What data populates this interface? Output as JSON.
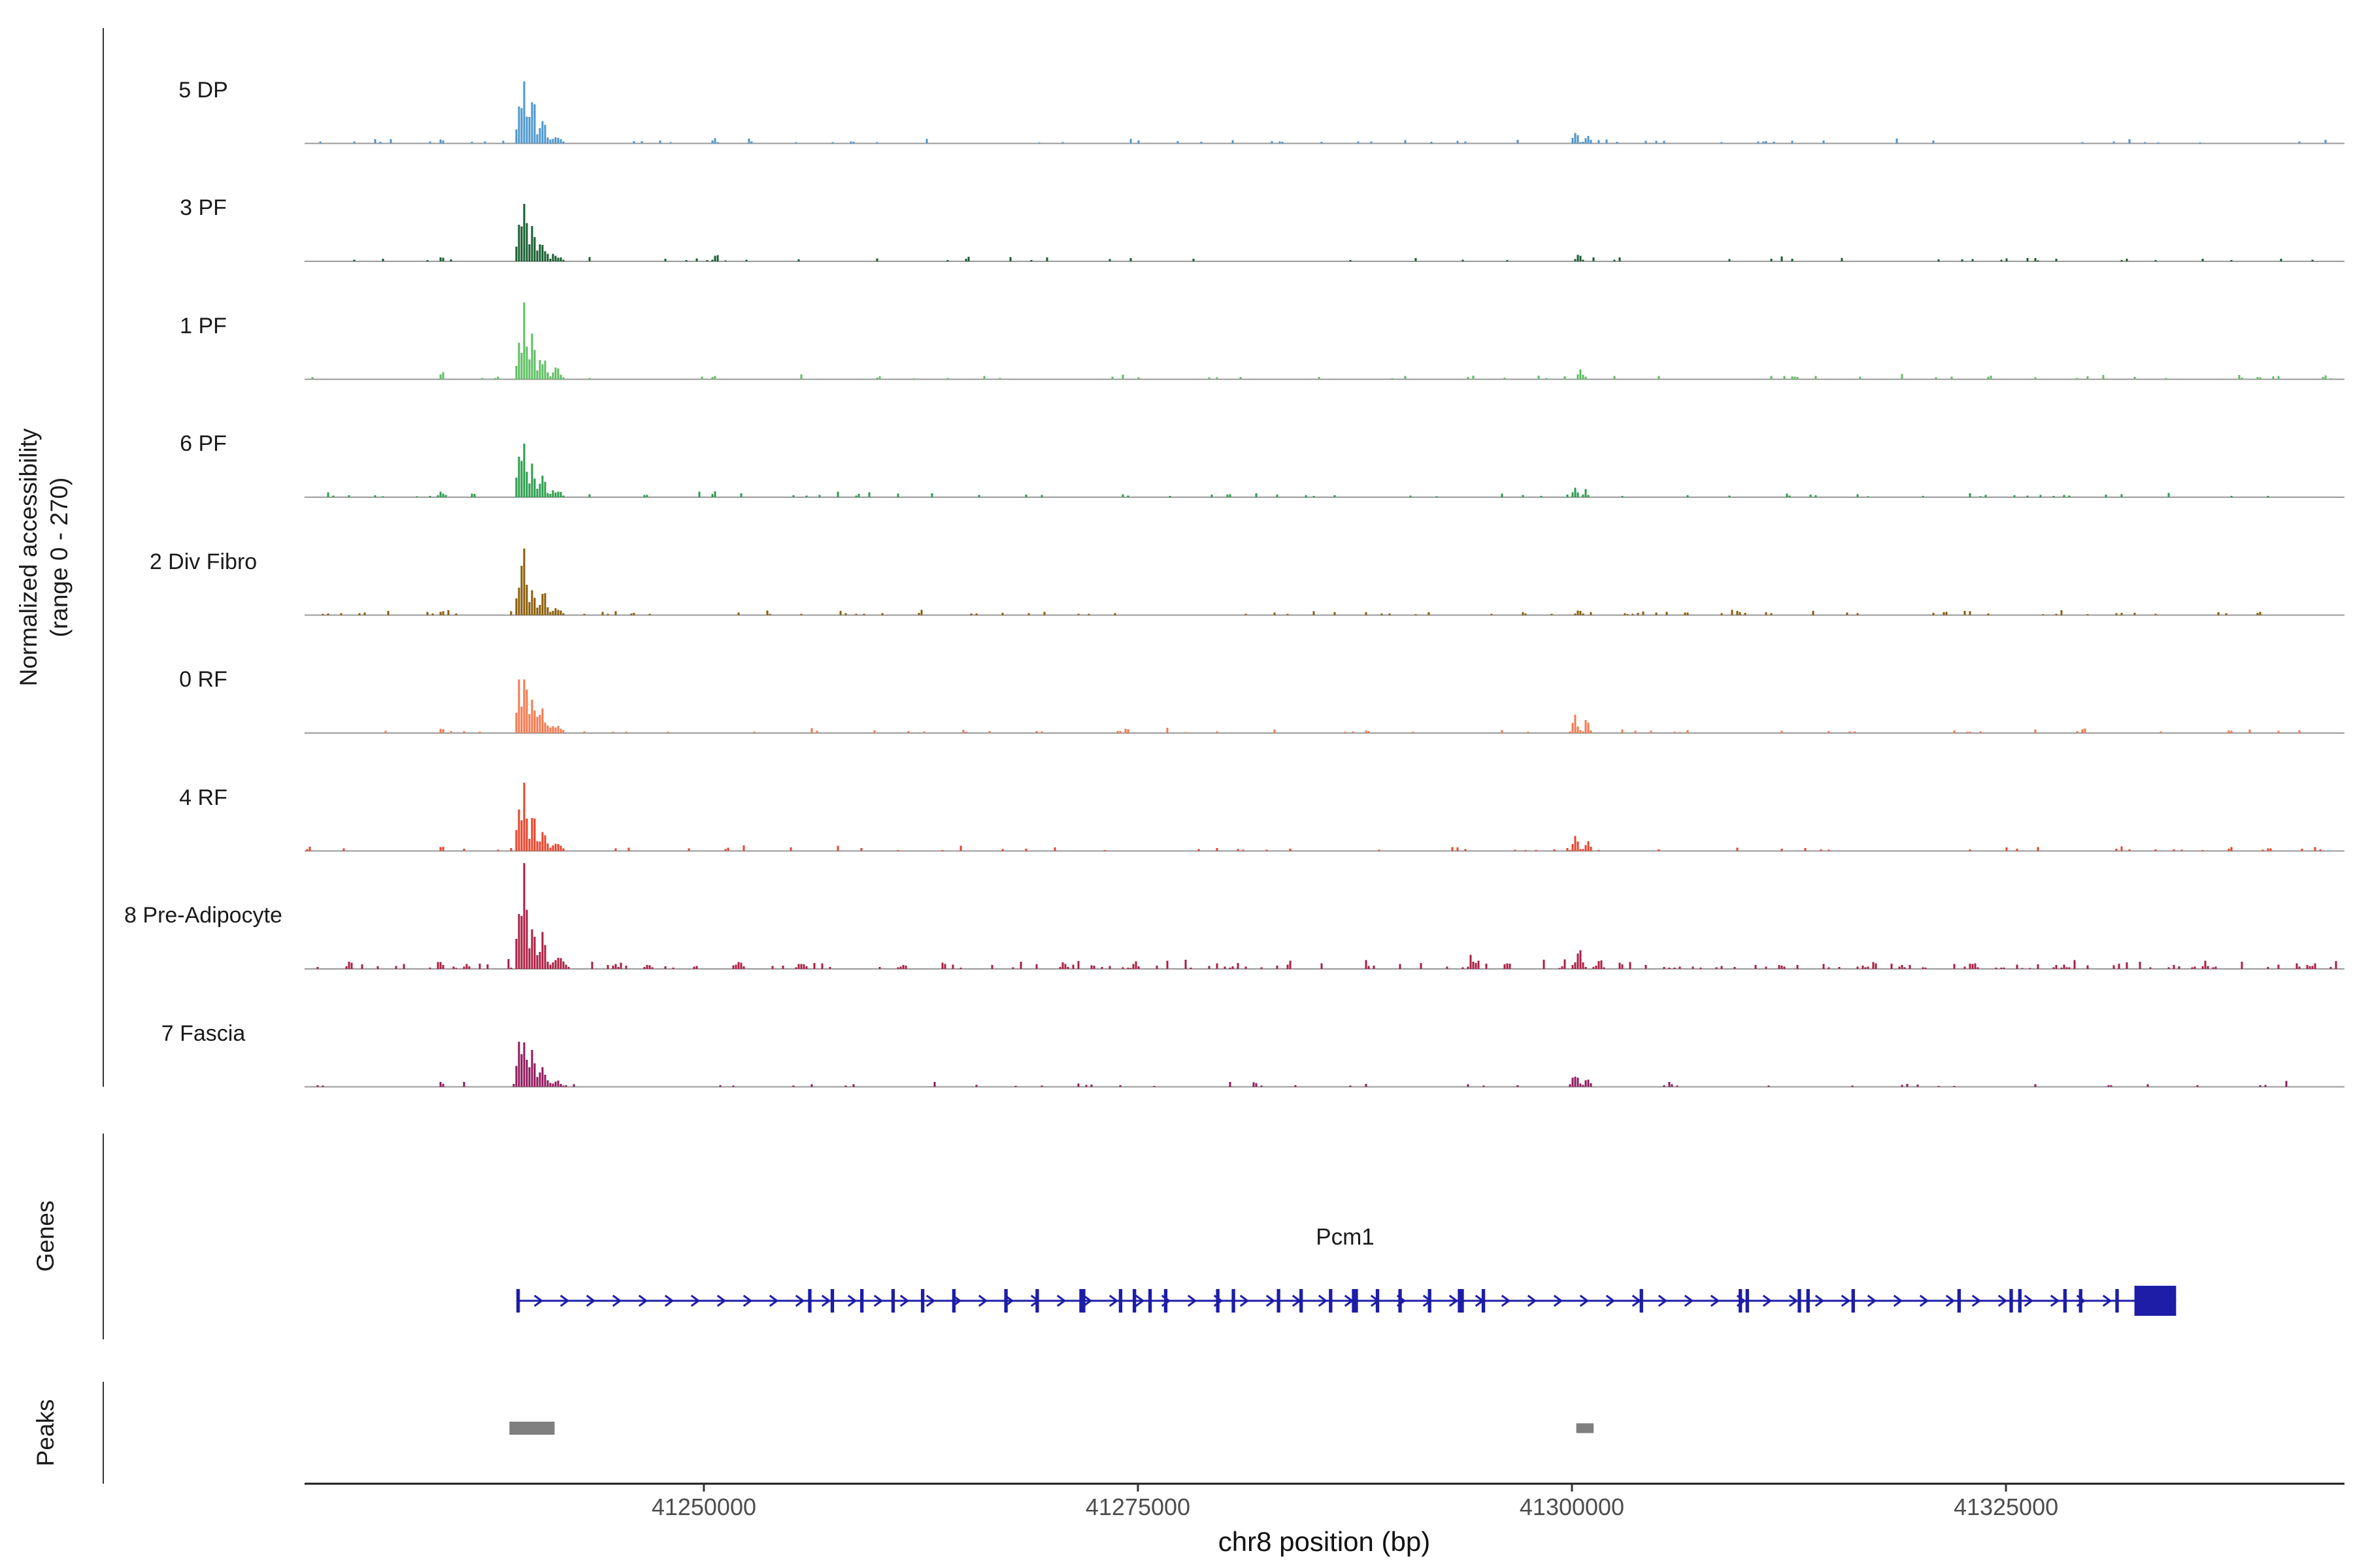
{
  "labels": {
    "y_axis_line1": "Normalized accessibility",
    "y_axis_line2": "(range 0 - 270)",
    "genes_section": "Genes",
    "peaks_section": "Peaks",
    "x_axis_title": "chr8 position (bp)",
    "gene_name": "Pcm1"
  },
  "chart_data": {
    "type": "area",
    "subtype": "genome-coverage-tracks",
    "title": "",
    "xlabel": "chr8 position (bp)",
    "ylabel": "Normalized accessibility (range 0 - 270)",
    "y_range": [
      0,
      270
    ],
    "x_domain": [
      41227000,
      41344500
    ],
    "x_ticks": [
      {
        "pos": 41250000,
        "label": "41250000"
      },
      {
        "pos": 41275000,
        "label": "41275000"
      },
      {
        "pos": 41300000,
        "label": "41300000"
      },
      {
        "pos": 41325000,
        "label": "41325000"
      }
    ],
    "tracks": [
      {
        "label": "5 DP",
        "color": "#4D97CE",
        "seed": 11,
        "noise_density": 0.15,
        "noise_amp": 0.05,
        "peaks": [
          [
            41239300,
            90,
            0.3
          ],
          [
            41239650,
            150,
            0.58
          ],
          [
            41240150,
            120,
            0.38
          ],
          [
            41240700,
            180,
            0.22
          ],
          [
            41241500,
            280,
            0.07
          ],
          [
            41234900,
            140,
            0.05
          ],
          [
            41250600,
            130,
            0.06
          ],
          [
            41300200,
            150,
            0.13
          ],
          [
            41300900,
            130,
            0.1
          ]
        ]
      },
      {
        "label": "3 PF",
        "color": "#175E2F",
        "seed": 22,
        "noise_density": 0.15,
        "noise_amp": 0.045,
        "peaks": [
          [
            41239300,
            90,
            0.3
          ],
          [
            41239650,
            150,
            0.6
          ],
          [
            41240150,
            120,
            0.4
          ],
          [
            41240700,
            180,
            0.2
          ],
          [
            41241500,
            280,
            0.06
          ],
          [
            41234900,
            140,
            0.05
          ],
          [
            41250700,
            110,
            0.09
          ],
          [
            41300400,
            150,
            0.07
          ]
        ]
      },
      {
        "label": "1 PF",
        "color": "#5FBE62",
        "seed": 33,
        "noise_density": 0.15,
        "noise_amp": 0.05,
        "peaks": [
          [
            41239300,
            90,
            0.32
          ],
          [
            41239650,
            150,
            0.62
          ],
          [
            41240150,
            120,
            0.4
          ],
          [
            41240700,
            180,
            0.22
          ],
          [
            41241500,
            280,
            0.07
          ],
          [
            41234900,
            140,
            0.05
          ],
          [
            41250600,
            120,
            0.05
          ],
          [
            41300500,
            150,
            0.11
          ]
        ]
      },
      {
        "label": "6 PF",
        "color": "#2B9E4E",
        "seed": 44,
        "noise_density": 0.17,
        "noise_amp": 0.05,
        "peaks": [
          [
            41239300,
            90,
            0.32
          ],
          [
            41239650,
            150,
            0.6
          ],
          [
            41240150,
            120,
            0.38
          ],
          [
            41240700,
            180,
            0.2
          ],
          [
            41241500,
            280,
            0.07
          ],
          [
            41234900,
            140,
            0.06
          ],
          [
            41250600,
            120,
            0.05
          ],
          [
            41300200,
            140,
            0.08
          ],
          [
            41300800,
            120,
            0.07
          ]
        ]
      },
      {
        "label": "2 Div Fibro",
        "color": "#8A5C08",
        "seed": 55,
        "noise_density": 0.22,
        "noise_amp": 0.05,
        "peaks": [
          [
            41239300,
            90,
            0.34
          ],
          [
            41239650,
            150,
            0.62
          ],
          [
            41240150,
            120,
            0.36
          ],
          [
            41240700,
            180,
            0.18
          ],
          [
            41241500,
            280,
            0.06
          ],
          [
            41234900,
            140,
            0.05
          ],
          [
            41300400,
            150,
            0.06
          ]
        ]
      },
      {
        "label": "0 RF",
        "color": "#F4794F",
        "seed": 66,
        "noise_density": 0.15,
        "noise_amp": 0.05,
        "peaks": [
          [
            41239300,
            90,
            0.38
          ],
          [
            41239650,
            150,
            0.58
          ],
          [
            41240150,
            120,
            0.44
          ],
          [
            41240700,
            180,
            0.22
          ],
          [
            41241500,
            280,
            0.08
          ],
          [
            41234900,
            140,
            0.05
          ],
          [
            41300200,
            150,
            0.15
          ],
          [
            41300900,
            130,
            0.11
          ]
        ]
      },
      {
        "label": "4 RF",
        "color": "#E8432B",
        "seed": 77,
        "noise_density": 0.17,
        "noise_amp": 0.05,
        "peaks": [
          [
            41239300,
            90,
            0.34
          ],
          [
            41239650,
            150,
            0.62
          ],
          [
            41240150,
            120,
            0.4
          ],
          [
            41240700,
            180,
            0.2
          ],
          [
            41241500,
            280,
            0.07
          ],
          [
            41234900,
            140,
            0.05
          ],
          [
            41300200,
            150,
            0.14
          ],
          [
            41300900,
            130,
            0.12
          ]
        ]
      },
      {
        "label": "8 Pre-Adipocyte",
        "color": "#AB1F43",
        "seed": 88,
        "noise_density": 0.35,
        "noise_amp": 0.09,
        "peaks": [
          [
            41239300,
            90,
            0.48
          ],
          [
            41239650,
            150,
            0.88
          ],
          [
            41240150,
            120,
            0.52
          ],
          [
            41240700,
            180,
            0.3
          ],
          [
            41241700,
            320,
            0.1
          ],
          [
            41234800,
            150,
            0.07
          ],
          [
            41236400,
            110,
            0.05
          ],
          [
            41246800,
            140,
            0.06
          ],
          [
            41252000,
            240,
            0.08
          ],
          [
            41255600,
            200,
            0.07
          ],
          [
            41261500,
            150,
            0.05
          ],
          [
            41294200,
            120,
            0.1
          ],
          [
            41300400,
            200,
            0.14
          ],
          [
            41301600,
            150,
            0.09
          ],
          [
            41302800,
            120,
            0.06
          ],
          [
            41312000,
            130,
            0.05
          ],
          [
            41319000,
            130,
            0.05
          ]
        ]
      },
      {
        "label": "7 Fascia",
        "color": "#8F195C",
        "seed": 99,
        "noise_density": 0.17,
        "noise_amp": 0.05,
        "peaks": [
          [
            41239300,
            90,
            0.34
          ],
          [
            41239650,
            150,
            0.6
          ],
          [
            41240150,
            120,
            0.36
          ],
          [
            41240700,
            180,
            0.18
          ],
          [
            41241500,
            280,
            0.06
          ],
          [
            41234900,
            140,
            0.05
          ],
          [
            41300200,
            160,
            0.14
          ],
          [
            41300900,
            130,
            0.1
          ]
        ]
      }
    ],
    "gene": {
      "name": "Pcm1",
      "strand": "+",
      "color": "#1D1DA8",
      "start": 41239300,
      "end": 41334800,
      "exons": [
        [
          41239300,
          200
        ],
        [
          41256100,
          200
        ],
        [
          41257400,
          200
        ],
        [
          41259100,
          200
        ],
        [
          41260900,
          200
        ],
        [
          41262600,
          200
        ],
        [
          41264400,
          200
        ],
        [
          41267400,
          200
        ],
        [
          41269200,
          200
        ],
        [
          41271800,
          350
        ],
        [
          41274000,
          200
        ],
        [
          41274800,
          200
        ],
        [
          41275700,
          200
        ],
        [
          41276600,
          200
        ],
        [
          41279600,
          200
        ],
        [
          41280500,
          200
        ],
        [
          41283100,
          200
        ],
        [
          41284400,
          200
        ],
        [
          41286100,
          200
        ],
        [
          41287500,
          350
        ],
        [
          41288800,
          200
        ],
        [
          41290100,
          200
        ],
        [
          41291800,
          200
        ],
        [
          41293600,
          350
        ],
        [
          41294900,
          200
        ],
        [
          41304000,
          200
        ],
        [
          41309700,
          200
        ],
        [
          41310100,
          200
        ],
        [
          41313100,
          200
        ],
        [
          41313600,
          200
        ],
        [
          41316200,
          200
        ],
        [
          41322300,
          200
        ],
        [
          41325300,
          200
        ],
        [
          41325800,
          200
        ],
        [
          41328400,
          200
        ],
        [
          41329300,
          200
        ],
        [
          41331400,
          200
        ]
      ],
      "terminal_exon": [
        41332400,
        41334800
      ]
    },
    "peak_regions": [
      {
        "start": 41238800,
        "end": 41241400
      },
      {
        "start": 41300250,
        "end": 41301250
      }
    ],
    "peak_color": "#7f7f7f"
  }
}
